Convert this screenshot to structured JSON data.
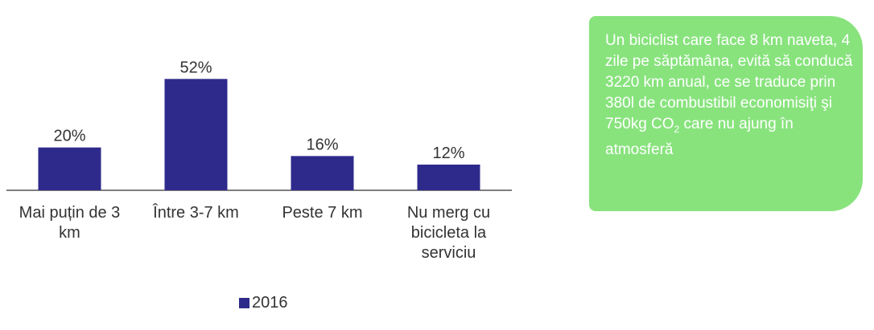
{
  "chart_data": {
    "type": "bar",
    "categories": [
      "Mai puțin de 3 km",
      "Între 3-7 km",
      "Peste 7 km",
      "Nu merg cu bicicleta la serviciu"
    ],
    "series": [
      {
        "name": "2016",
        "color": "#2e2a8c",
        "values": [
          20,
          52,
          16,
          12
        ],
        "value_labels": [
          "20%",
          "52%",
          "16%",
          "12%"
        ]
      }
    ],
    "ylim": [
      0,
      60
    ],
    "grid": false,
    "legend": "bottom"
  },
  "callout": {
    "text": "Un biciclist care face 8 km naveta, 4 zile pe săptămâna, evită să conducă 3220 km anual, ce se traduce prin 380l de combustibil economisiţi şi 750kg CO",
    "subscript": "2",
    "text_end": " care nu ajung în atmosferă"
  }
}
